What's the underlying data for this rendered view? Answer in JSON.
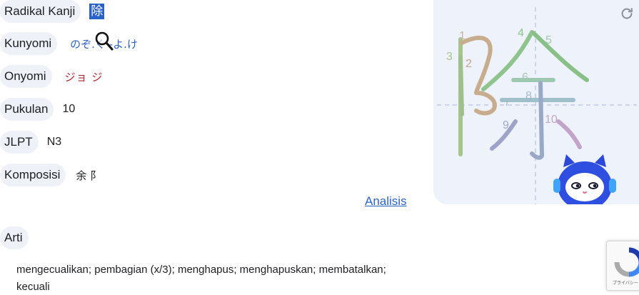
{
  "rows": {
    "radikal": {
      "label": "Radikal Kanji",
      "value": "除"
    },
    "kunyomi": {
      "label": "Kunyomi",
      "value": "のぞ.く -よ.け"
    },
    "onyomi": {
      "label": "Onyomi",
      "value": "ジョ ジ"
    },
    "pukulan": {
      "label": "Pukulan",
      "value": "10"
    },
    "jlpt": {
      "label": "JLPT",
      "value": "N3"
    },
    "komposisi": {
      "label": "Komposisi",
      "value": "余 阝"
    }
  },
  "analisis_link": "Analisis",
  "arti": {
    "label": "Arti",
    "meaning": "mengecualikan; pembagian (x/3); menghapus; menghapuskan; membatalkan; kecuali"
  },
  "stroke_diagram": {
    "kanji": "除",
    "stroke_numbers": [
      "1",
      "2",
      "3",
      "4",
      "5",
      "6",
      "7",
      "8",
      "9",
      "10"
    ]
  },
  "recaptcha": {
    "text": "プライバシー・利用規約"
  },
  "colors": {
    "pill_bg": "#eef2f8",
    "link": "#2f63c4",
    "onyomi": "#b0262f",
    "kanji_highlight": "#2a62c9",
    "panel_bg": "#eef2fb"
  },
  "icons": [
    "search-icon",
    "refresh-icon",
    "mascot-icon",
    "recaptcha-icon"
  ]
}
